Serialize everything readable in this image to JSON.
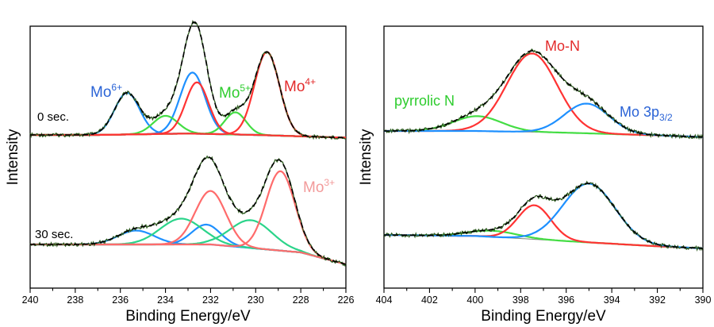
{
  "chart_data": [
    {
      "type": "line",
      "xlabel": "Binding Energy/eV",
      "ylabel": "Intensity",
      "xlim": [
        240,
        226
      ],
      "x_reversed": true,
      "xticks": [
        "240",
        "238",
        "236",
        "234",
        "232",
        "230",
        "228",
        "226"
      ],
      "grid": false,
      "annotations": [
        {
          "base": "Mo",
          "sup": "6+",
          "color": "#2a63d6"
        },
        {
          "base": "Mo",
          "sup": "5+",
          "color": "#2ecc2e"
        },
        {
          "base": "Mo",
          "sup": "4+",
          "color": "#e32b2b"
        },
        {
          "base": "Mo",
          "sup": "3+",
          "color": "#f29a9a"
        }
      ],
      "traces": [
        {
          "label": "0 sec.",
          "background": [
            [
              240,
              0.0
            ],
            [
              237,
              0.0
            ],
            [
              233,
              0.01
            ],
            [
              230,
              0.0
            ],
            [
              226,
              -0.02
            ]
          ],
          "peaks": [
            {
              "species": "Mo6+",
              "center": 235.7,
              "height": 0.3,
              "fwhm": 1.3,
              "color": "#1e90ff"
            },
            {
              "species": "Mo6+",
              "center": 232.8,
              "height": 0.44,
              "fwhm": 1.3,
              "color": "#1e90ff"
            },
            {
              "species": "Mo5+",
              "center": 234.0,
              "height": 0.13,
              "fwhm": 1.3,
              "color": "#44dd44"
            },
            {
              "species": "Mo5+",
              "center": 230.9,
              "height": 0.16,
              "fwhm": 1.1,
              "color": "#44dd44"
            },
            {
              "species": "Mo4+",
              "center": 232.6,
              "height": 0.37,
              "fwhm": 1.2,
              "color": "#ff3333"
            },
            {
              "species": "Mo4+",
              "center": 229.5,
              "height": 0.6,
              "fwhm": 1.3,
              "color": "#ff3333"
            }
          ]
        },
        {
          "label": "30 sec.",
          "background": [
            [
              240,
              0.0
            ],
            [
              236,
              0.0
            ],
            [
              232,
              0.0
            ],
            [
              228,
              -0.04
            ],
            [
              226,
              -0.1
            ]
          ],
          "peaks": [
            {
              "species": "Mo6+",
              "center": 235.3,
              "height": 0.07,
              "fwhm": 1.9,
              "color": "#1e90ff"
            },
            {
              "species": "Mo6+",
              "center": 232.2,
              "height": 0.1,
              "fwhm": 1.5,
              "color": "#1e90ff"
            },
            {
              "species": "Mo5+",
              "center": 233.3,
              "height": 0.13,
              "fwhm": 2.2,
              "color": "#2bd48a"
            },
            {
              "species": "Mo5+",
              "center": 230.2,
              "height": 0.14,
              "fwhm": 2.2,
              "color": "#2bd48a"
            },
            {
              "species": "Mo4+",
              "center": 232.0,
              "height": 0.27,
              "fwhm": 1.6,
              "color": "#ff6b6b"
            },
            {
              "species": "Mo4+",
              "center": 228.9,
              "height": 0.4,
              "fwhm": 1.5,
              "color": "#ff6b6b"
            }
          ]
        }
      ]
    },
    {
      "type": "line",
      "xlabel": "Binding Energy/eV",
      "ylabel": "Intensity",
      "xlim": [
        404,
        390
      ],
      "x_reversed": true,
      "xticks": [
        "404",
        "402",
        "400",
        "398",
        "396",
        "394",
        "392",
        "390"
      ],
      "grid": false,
      "annotations": [
        {
          "base": "Mo-N",
          "sup": "",
          "color": "#e32b2b"
        },
        {
          "base": "pyrrolic N",
          "sup": "",
          "color": "#2ecc2e"
        },
        {
          "base": "Mo 3p",
          "sub": "3/2",
          "color": "#2a63d6"
        }
      ],
      "traces": [
        {
          "label": "",
          "background": [
            [
              404,
              0.0
            ],
            [
              400,
              0.0
            ],
            [
              396,
              -0.02
            ],
            [
              392,
              -0.05
            ],
            [
              390,
              -0.07
            ]
          ],
          "peaks": [
            {
              "species": "pyrrolic N",
              "center": 399.9,
              "height": 0.17,
              "fwhm": 2.5,
              "color": "#44dd44"
            },
            {
              "species": "Mo-N",
              "center": 397.5,
              "height": 0.9,
              "fwhm": 2.6,
              "color": "#ff3333"
            },
            {
              "species": "Mo 3p3/2",
              "center": 395.1,
              "height": 0.34,
              "fwhm": 2.3,
              "color": "#1e90ff"
            }
          ]
        },
        {
          "label": "",
          "background": [
            [
              404,
              0.0
            ],
            [
              400,
              -0.01
            ],
            [
              396,
              -0.06
            ],
            [
              392,
              -0.11
            ],
            [
              390,
              -0.13
            ]
          ],
          "peaks": [
            {
              "species": "pyrrolic N",
              "center": 399.2,
              "height": 0.06,
              "fwhm": 2.5,
              "color": "#44dd44"
            },
            {
              "species": "Mo-N",
              "center": 397.4,
              "height": 0.33,
              "fwhm": 1.7,
              "color": "#ff3333"
            },
            {
              "species": "Mo 3p3/2",
              "center": 395.0,
              "height": 0.57,
              "fwhm": 2.7,
              "color": "#1e90ff"
            }
          ]
        }
      ]
    }
  ]
}
